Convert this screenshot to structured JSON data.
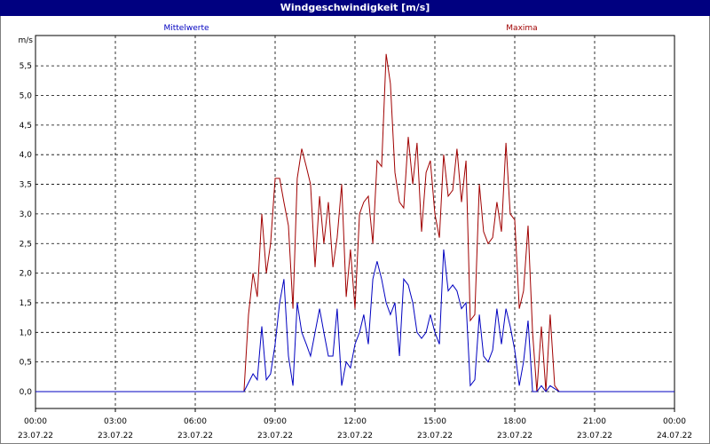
{
  "window": {
    "title": "Windgeschwindigkeit [m/s]"
  },
  "colors": {
    "mean": "#0000c0",
    "max": "#a00000",
    "titlebar": "#000080",
    "grid": "#000000"
  },
  "chart_data": {
    "type": "line",
    "title": "Windgeschwindigkeit [m/s]",
    "ylabel": "m/s",
    "ylim": [
      0,
      6
    ],
    "yticks": [
      "0,0",
      "0,5",
      "1,0",
      "1,5",
      "2,0",
      "2,5",
      "3,0",
      "3,5",
      "4,0",
      "4,5",
      "5,0",
      "5,5"
    ],
    "xlim": [
      0,
      24
    ],
    "xticks": [
      {
        "time": "00:00",
        "date": "23.07.22"
      },
      {
        "time": "03:00",
        "date": "23.07.22"
      },
      {
        "time": "06:00",
        "date": "23.07.22"
      },
      {
        "time": "09:00",
        "date": "23.07.22"
      },
      {
        "time": "12:00",
        "date": "23.07.22"
      },
      {
        "time": "15:00",
        "date": "23.07.22"
      },
      {
        "time": "18:00",
        "date": "23.07.22"
      },
      {
        "time": "21:00",
        "date": "23.07.22"
      },
      {
        "time": "00:00",
        "date": "24.07.22"
      }
    ],
    "grid": true,
    "series": [
      {
        "name": "Mittelwerte",
        "color": "#0000c0",
        "x": [
          0,
          7.83,
          8.0,
          8.17,
          8.33,
          8.5,
          8.67,
          8.83,
          9.0,
          9.17,
          9.33,
          9.5,
          9.67,
          9.83,
          10.0,
          10.17,
          10.33,
          10.5,
          10.67,
          10.83,
          11.0,
          11.17,
          11.33,
          11.5,
          11.67,
          11.83,
          12.0,
          12.17,
          12.33,
          12.5,
          12.67,
          12.83,
          13.0,
          13.17,
          13.33,
          13.5,
          13.67,
          13.83,
          14.0,
          14.17,
          14.33,
          14.5,
          14.67,
          14.83,
          15.0,
          15.17,
          15.33,
          15.5,
          15.67,
          15.83,
          16.0,
          16.17,
          16.33,
          16.5,
          16.67,
          16.83,
          17.0,
          17.17,
          17.33,
          17.5,
          17.67,
          17.83,
          18.0,
          18.17,
          18.33,
          18.5,
          18.67,
          18.83,
          19.0,
          19.17,
          19.33,
          19.5,
          19.67,
          24
        ],
        "y": [
          0.0,
          0.0,
          0.15,
          0.3,
          0.2,
          1.1,
          0.2,
          0.3,
          0.8,
          1.5,
          1.9,
          0.6,
          0.1,
          1.5,
          1.0,
          0.8,
          0.6,
          1.0,
          1.4,
          1.0,
          0.6,
          0.6,
          1.4,
          0.1,
          0.5,
          0.4,
          0.8,
          1.0,
          1.3,
          0.8,
          1.9,
          2.2,
          1.9,
          1.5,
          1.3,
          1.5,
          0.6,
          1.9,
          1.8,
          1.5,
          1.0,
          0.9,
          1.0,
          1.3,
          1.0,
          0.8,
          2.4,
          1.7,
          1.8,
          1.7,
          1.4,
          1.5,
          0.1,
          0.2,
          1.3,
          0.6,
          0.5,
          0.7,
          1.4,
          0.8,
          1.4,
          1.1,
          0.7,
          0.1,
          0.5,
          1.2,
          0.0,
          0.0,
          0.1,
          0.0,
          0.1,
          0.05,
          0.0,
          0.0
        ]
      },
      {
        "name": "Maxima",
        "color": "#a00000",
        "x": [
          0,
          7.83,
          8.0,
          8.17,
          8.33,
          8.5,
          8.67,
          8.83,
          9.0,
          9.17,
          9.33,
          9.5,
          9.67,
          9.83,
          10.0,
          10.17,
          10.33,
          10.5,
          10.67,
          10.83,
          11.0,
          11.17,
          11.33,
          11.5,
          11.67,
          11.83,
          12.0,
          12.17,
          12.33,
          12.5,
          12.67,
          12.83,
          13.0,
          13.17,
          13.33,
          13.5,
          13.67,
          13.83,
          14.0,
          14.17,
          14.33,
          14.5,
          14.67,
          14.83,
          15.0,
          15.17,
          15.33,
          15.5,
          15.67,
          15.83,
          16.0,
          16.17,
          16.33,
          16.5,
          16.67,
          16.83,
          17.0,
          17.17,
          17.33,
          17.5,
          17.67,
          17.83,
          18.0,
          18.17,
          18.33,
          18.5,
          18.67,
          18.83,
          19.0,
          19.17,
          19.33,
          19.5,
          19.67,
          24
        ],
        "y": [
          0.0,
          0.0,
          1.3,
          2.0,
          1.6,
          3.0,
          2.0,
          2.5,
          3.6,
          3.6,
          3.2,
          2.8,
          1.4,
          3.6,
          4.1,
          3.8,
          3.5,
          2.1,
          3.3,
          2.5,
          3.2,
          2.1,
          2.6,
          3.5,
          1.6,
          2.4,
          1.4,
          3.0,
          3.2,
          3.3,
          2.5,
          3.9,
          3.8,
          5.7,
          5.2,
          3.7,
          3.2,
          3.1,
          4.3,
          3.5,
          4.2,
          2.7,
          3.7,
          3.9,
          3.0,
          2.6,
          4.0,
          3.3,
          3.4,
          4.1,
          3.2,
          3.9,
          1.2,
          1.3,
          3.5,
          2.7,
          2.5,
          2.6,
          3.2,
          2.7,
          4.2,
          3.0,
          2.9,
          1.4,
          1.7,
          2.8,
          1.0,
          0.0,
          1.1,
          0.0,
          1.3,
          0.1,
          0.0,
          0.0
        ]
      }
    ]
  }
}
